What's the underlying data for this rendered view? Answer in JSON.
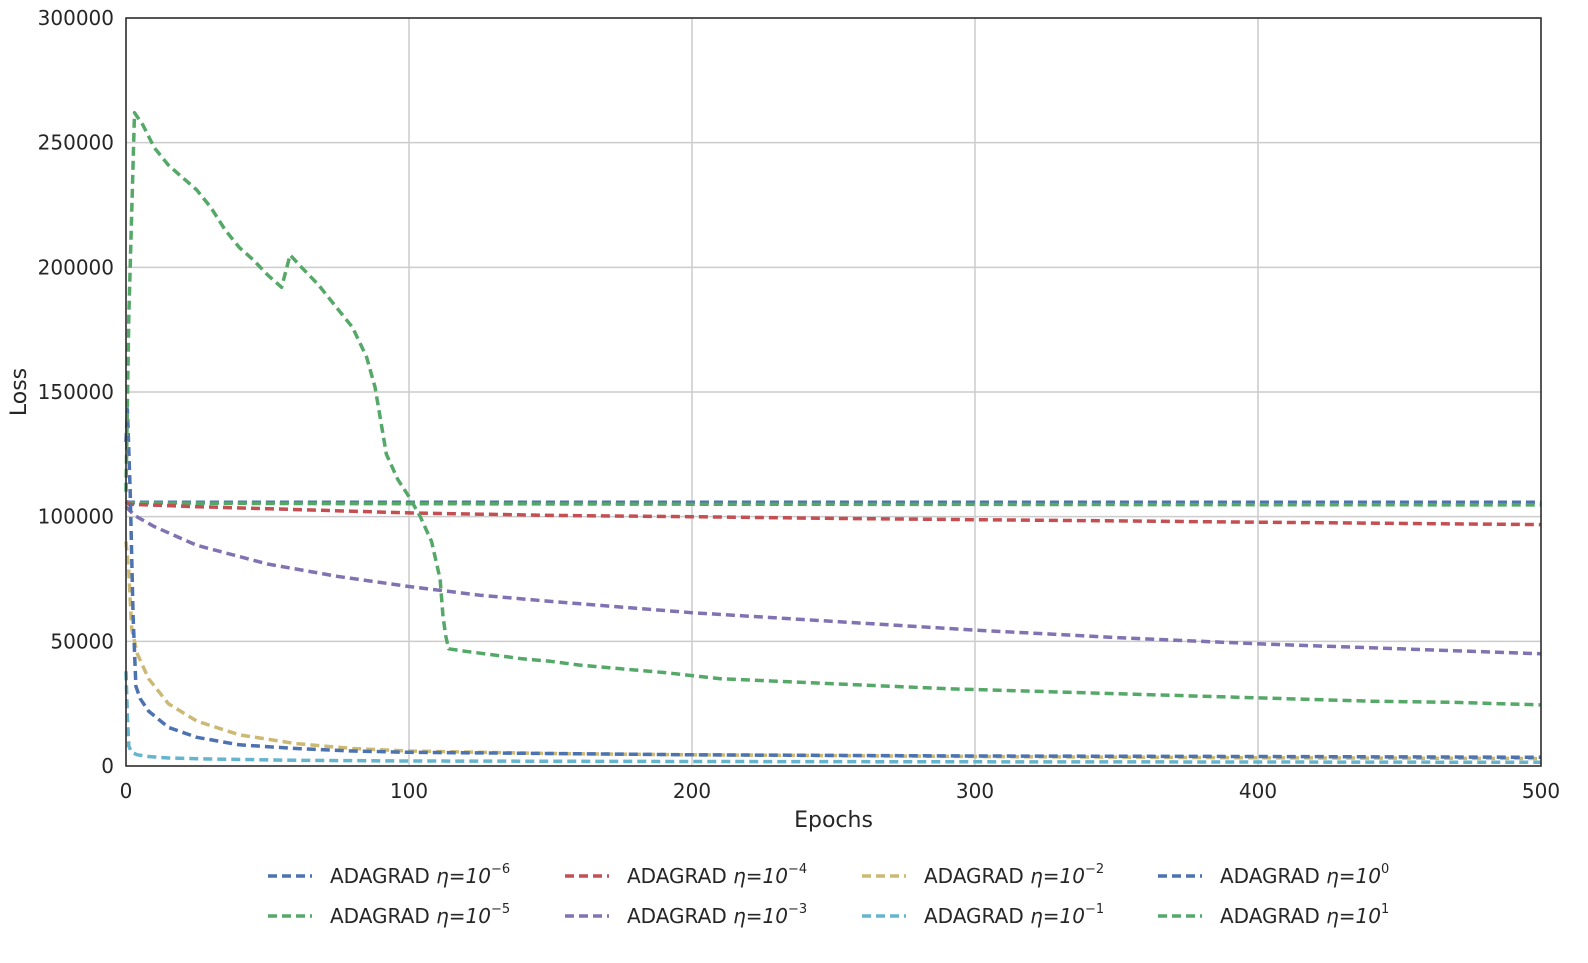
{
  "chart_data": {
    "type": "line",
    "xlabel": "Epochs",
    "ylabel": "Loss",
    "xlim": [
      0,
      500
    ],
    "ylim": [
      0,
      300000
    ],
    "x_ticks": [
      "0",
      "100",
      "200",
      "300",
      "400",
      "500"
    ],
    "y_ticks": [
      "0",
      "50000",
      "100000",
      "150000",
      "200000",
      "250000",
      "300000"
    ],
    "x_tick_values": [
      0,
      100,
      200,
      300,
      400,
      500
    ],
    "y_tick_values": [
      0,
      50000,
      100000,
      150000,
      200000,
      250000,
      300000
    ],
    "grid": true,
    "legend_position": "bottom",
    "line_style": "dashed",
    "series": [
      {
        "name": "ADAGRAD η=10^-6",
        "legend_prefix": "ADAGRAD",
        "legend_eta": "η=10",
        "legend_exp": "−6",
        "color": "#4c72b0",
        "x": [
          0,
          1,
          50,
          100,
          200,
          300,
          400,
          500
        ],
        "y": [
          106000,
          105800,
          105800,
          105800,
          105800,
          105800,
          105800,
          105800
        ]
      },
      {
        "name": "ADAGRAD η=10^-5",
        "legend_prefix": "ADAGRAD",
        "legend_eta": "η=10",
        "legend_exp": "−5",
        "color": "#55a868",
        "x": [
          0,
          1,
          50,
          100,
          200,
          300,
          400,
          500
        ],
        "y": [
          106000,
          105500,
          105300,
          105200,
          105000,
          104900,
          104800,
          104700
        ]
      },
      {
        "name": "ADAGRAD η=10^-4",
        "legend_prefix": "ADAGRAD",
        "legend_eta": "η=10",
        "legend_exp": "−4",
        "color": "#c44e52",
        "x": [
          0,
          1,
          25,
          50,
          100,
          150,
          200,
          250,
          300,
          350,
          400,
          450,
          500
        ],
        "y": [
          106000,
          105000,
          104000,
          103200,
          101500,
          100500,
          100000,
          99300,
          98800,
          98300,
          97800,
          97300,
          96800
        ]
      },
      {
        "name": "ADAGRAD η=10^-3",
        "legend_prefix": "ADAGRAD",
        "legend_eta": "η=10",
        "legend_exp": "−3",
        "color": "#8172b2",
        "x": [
          0,
          3,
          10,
          25,
          50,
          75,
          100,
          125,
          150,
          200,
          250,
          300,
          350,
          400,
          450,
          500
        ],
        "y": [
          104000,
          100500,
          96000,
          88500,
          81000,
          76000,
          72000,
          68500,
          66000,
          61500,
          58000,
          54500,
          51500,
          49000,
          47000,
          45000
        ]
      },
      {
        "name": "ADAGRAD η=10^-2",
        "legend_prefix": "ADAGRAD",
        "legend_eta": "η=10",
        "legend_exp": "−2",
        "color": "#ccb974",
        "x": [
          0,
          1,
          2,
          4,
          8,
          15,
          25,
          40,
          60,
          80,
          100,
          150,
          200,
          300,
          400,
          500
        ],
        "y": [
          90000,
          78000,
          55000,
          45000,
          35000,
          25000,
          18000,
          12500,
          9000,
          7000,
          6000,
          5000,
          4500,
          3800,
          3300,
          3000
        ]
      },
      {
        "name": "ADAGRAD η=10^-1",
        "legend_prefix": "ADAGRAD",
        "legend_eta": "η=10",
        "legend_exp": "−1",
        "color": "#64b5cd",
        "x": [
          0,
          0.5,
          1,
          2,
          4,
          8,
          15,
          30,
          60,
          100,
          200,
          300,
          400,
          500
        ],
        "y": [
          38000,
          20000,
          8000,
          5500,
          4500,
          3800,
          3200,
          2800,
          2300,
          2000,
          1800,
          1700,
          1600,
          1500
        ]
      },
      {
        "name": "ADAGRAD η=10^0",
        "legend_prefix": "ADAGRAD",
        "legend_eta": "η=10",
        "legend_exp": "0",
        "color": "#4c72b0",
        "x": [
          0,
          0.5,
          1.5,
          2.5,
          3.5,
          5,
          8,
          15,
          25,
          40,
          60,
          80,
          100,
          150,
          200,
          300,
          400,
          500
        ],
        "y": [
          130000,
          143000,
          110000,
          60000,
          32000,
          27000,
          22000,
          15500,
          11500,
          8500,
          7000,
          6000,
          5500,
          5000,
          4500,
          4000,
          3800,
          3500
        ]
      },
      {
        "name": "ADAGRAD η=10^1",
        "legend_prefix": "ADAGRAD",
        "legend_eta": "η=10",
        "legend_exp": "1",
        "color": "#55a868",
        "x": [
          0,
          1,
          3,
          6,
          10,
          15,
          20,
          25,
          30,
          35,
          40,
          45,
          50,
          55,
          58,
          62,
          68,
          75,
          80,
          85,
          88,
          92,
          96,
          100,
          104,
          108,
          111,
          112,
          113,
          114,
          120,
          130,
          140,
          150,
          160,
          175,
          190,
          210,
          230,
          260,
          290,
          320,
          350,
          380,
          410,
          440,
          470,
          500
        ],
        "y": [
          110000,
          180000,
          262000,
          257000,
          248000,
          241000,
          236000,
          231000,
          224000,
          215000,
          208000,
          203000,
          197000,
          192000,
          205000,
          200000,
          193000,
          183000,
          176000,
          164000,
          152000,
          125000,
          115000,
          108000,
          100000,
          90000,
          75000,
          60000,
          52000,
          47000,
          46000,
          44500,
          43000,
          42000,
          40500,
          39000,
          37500,
          35000,
          34000,
          32500,
          31000,
          30000,
          29000,
          28000,
          27000,
          26000,
          25500,
          24500
        ]
      }
    ]
  }
}
